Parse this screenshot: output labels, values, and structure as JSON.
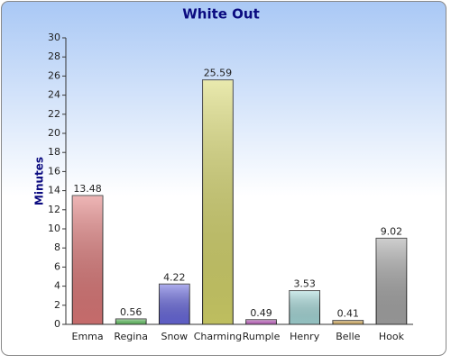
{
  "chart_data": {
    "type": "bar",
    "title": "White Out",
    "y_label": "Minutes",
    "categories": [
      "Emma",
      "Regina",
      "Snow",
      "Charming",
      "Rumple",
      "Henry",
      "Belle",
      "Hook"
    ],
    "values": [
      13.48,
      0.56,
      4.22,
      25.59,
      0.49,
      3.53,
      0.41,
      9.02
    ],
    "colors": [
      "#e07a7a",
      "#6ccc6c",
      "#6a6ae0",
      "#d8d86c",
      "#d070d0",
      "#a8dcdc",
      "#e8c070",
      "#a8a8a8"
    ],
    "ylim": [
      0,
      30
    ],
    "yticks": [
      0,
      2,
      4,
      6,
      8,
      10,
      12,
      14,
      16,
      18,
      20,
      22,
      24,
      26,
      28,
      30
    ],
    "grid": false
  }
}
